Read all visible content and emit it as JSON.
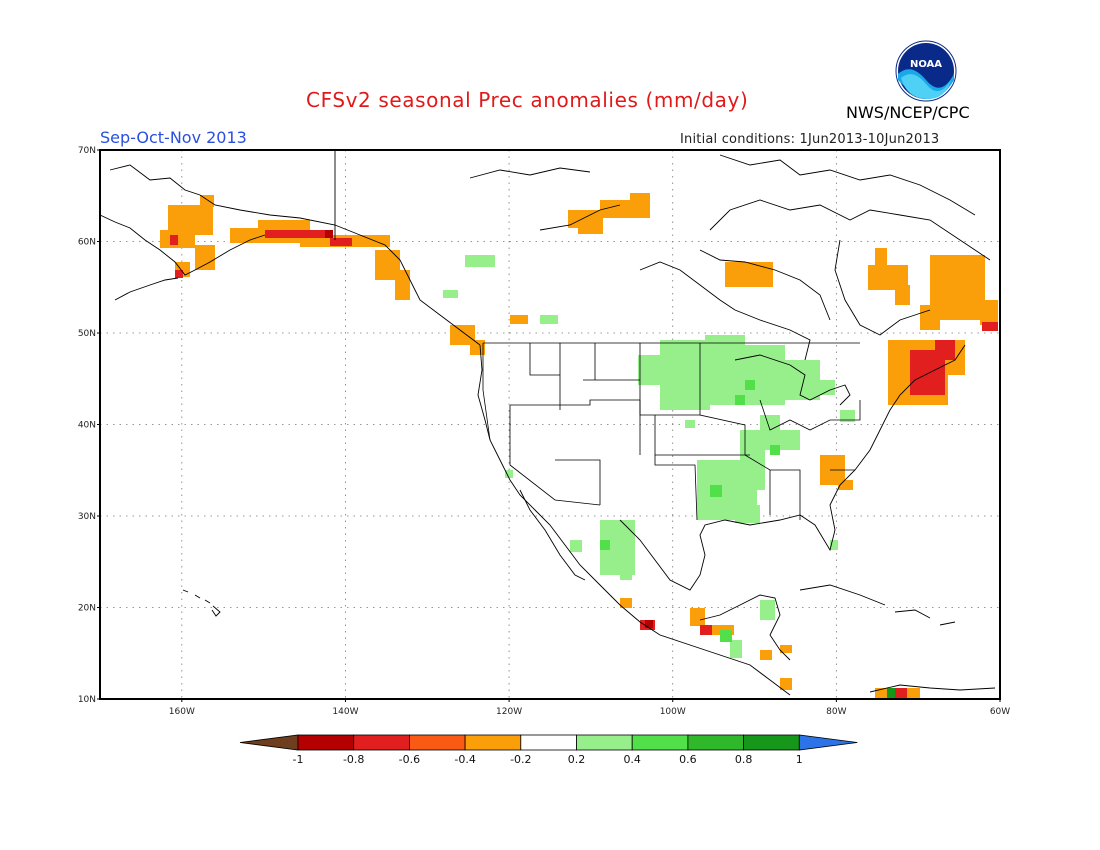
{
  "header": {
    "title": "CFSv2 seasonal Prec anomalies (mm/day)",
    "season": "Sep-Oct-Nov 2013",
    "initial_conditions": "Initial conditions: 1Jun2013-10Jun2013",
    "agency": "NWS/NCEP/CPC",
    "logo_text": "NOAA"
  },
  "map": {
    "lon_range": [
      -170,
      -60
    ],
    "lat_range": [
      10,
      70
    ],
    "lat_labels": [
      "70N",
      "60N",
      "50N",
      "40N",
      "30N",
      "20N",
      "10N"
    ],
    "lon_labels": [
      "160W",
      "140W",
      "120W",
      "100W",
      "80W",
      "60W"
    ],
    "grid": true
  },
  "colorbar": {
    "labels": [
      "-1",
      "-0.8",
      "-0.6",
      "-0.4",
      "-0.2",
      "0.2",
      "0.4",
      "0.6",
      "0.8",
      "1"
    ],
    "colors": [
      "#6e3e1f",
      "#b40000",
      "#e21f1f",
      "#fa5a14",
      "#fa9e0a",
      "#ffffff",
      "#97ef8c",
      "#52e04a",
      "#2fb82a",
      "#17971a",
      "#2c73e8"
    ]
  }
}
